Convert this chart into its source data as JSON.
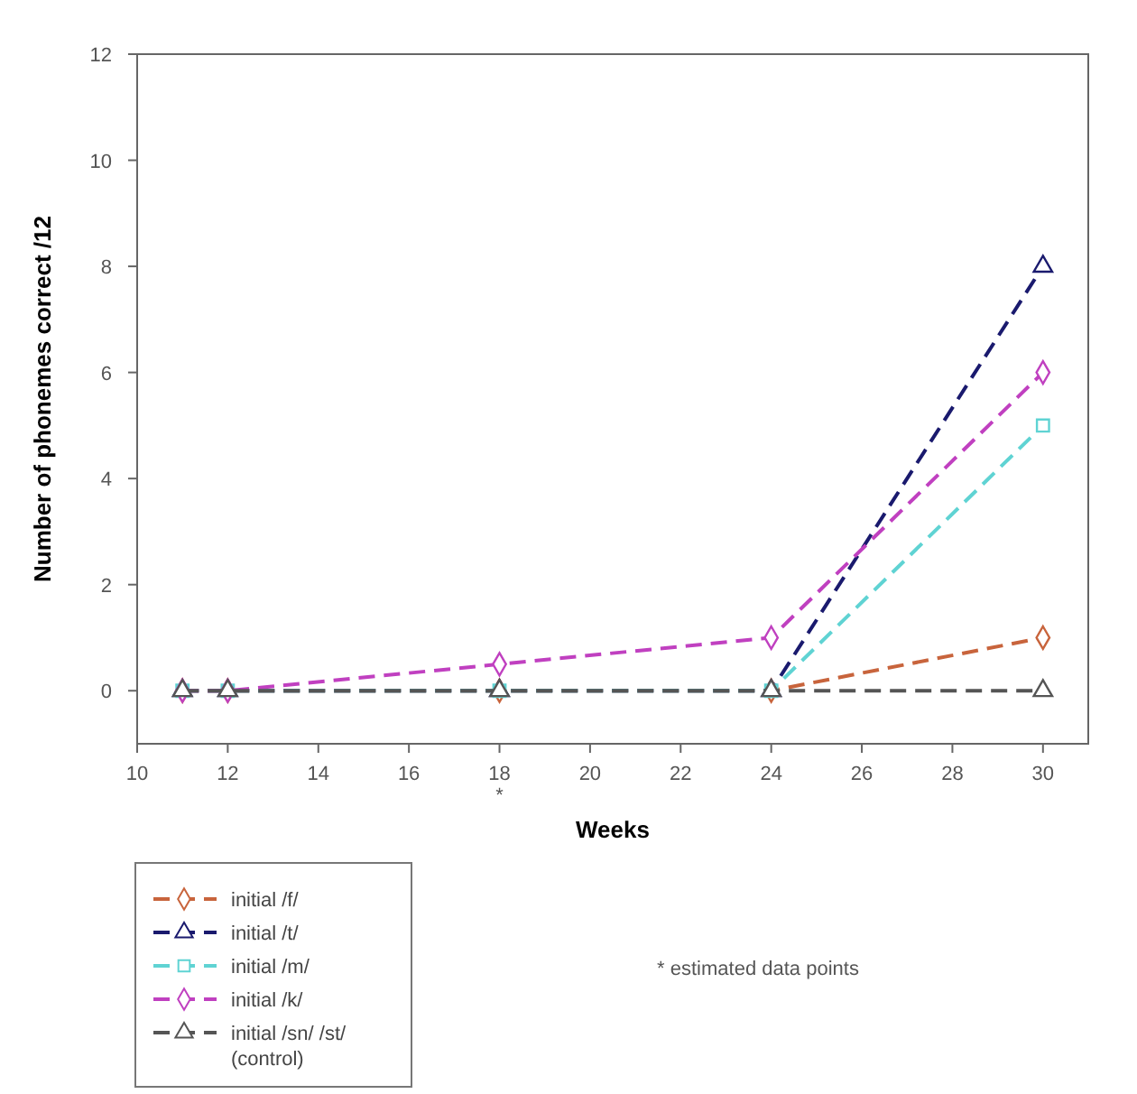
{
  "chart_data": {
    "type": "line",
    "xlabel": "Weeks",
    "ylabel": "Number of phonemes correct /12",
    "x": [
      11,
      12,
      18,
      24,
      30
    ],
    "series": [
      {
        "name": "initial /f/",
        "color": "#c8643c",
        "values": [
          0,
          0,
          0,
          0,
          1
        ],
        "marker": "diamond"
      },
      {
        "name": "initial /t/",
        "color": "#1a1a6e",
        "values": [
          0,
          0,
          0,
          0,
          8
        ],
        "marker": "triangle"
      },
      {
        "name": "initial /m/",
        "color": "#5fd3d3",
        "values": [
          0,
          0,
          0,
          0,
          5
        ],
        "marker": "square"
      },
      {
        "name": "initial /k/",
        "color": "#c040c0",
        "values": [
          0,
          0,
          0.5,
          1,
          6
        ],
        "marker": "diamond"
      },
      {
        "name": "initial /sn/ /st/ (control)",
        "color": "#555555",
        "values": [
          0,
          0,
          0,
          0,
          0
        ],
        "marker": "triangle"
      }
    ],
    "xlim": [
      10,
      31
    ],
    "xticks": [
      10,
      12,
      14,
      16,
      18,
      20,
      22,
      24,
      26,
      28,
      30
    ],
    "ylim": [
      -1,
      12
    ],
    "yticks": [
      0,
      2,
      4,
      6,
      8,
      10,
      12
    ],
    "line_style": "dashed",
    "grid": false,
    "legend": "bottom left",
    "annotations": [
      "*",
      "* estimated data points"
    ]
  }
}
